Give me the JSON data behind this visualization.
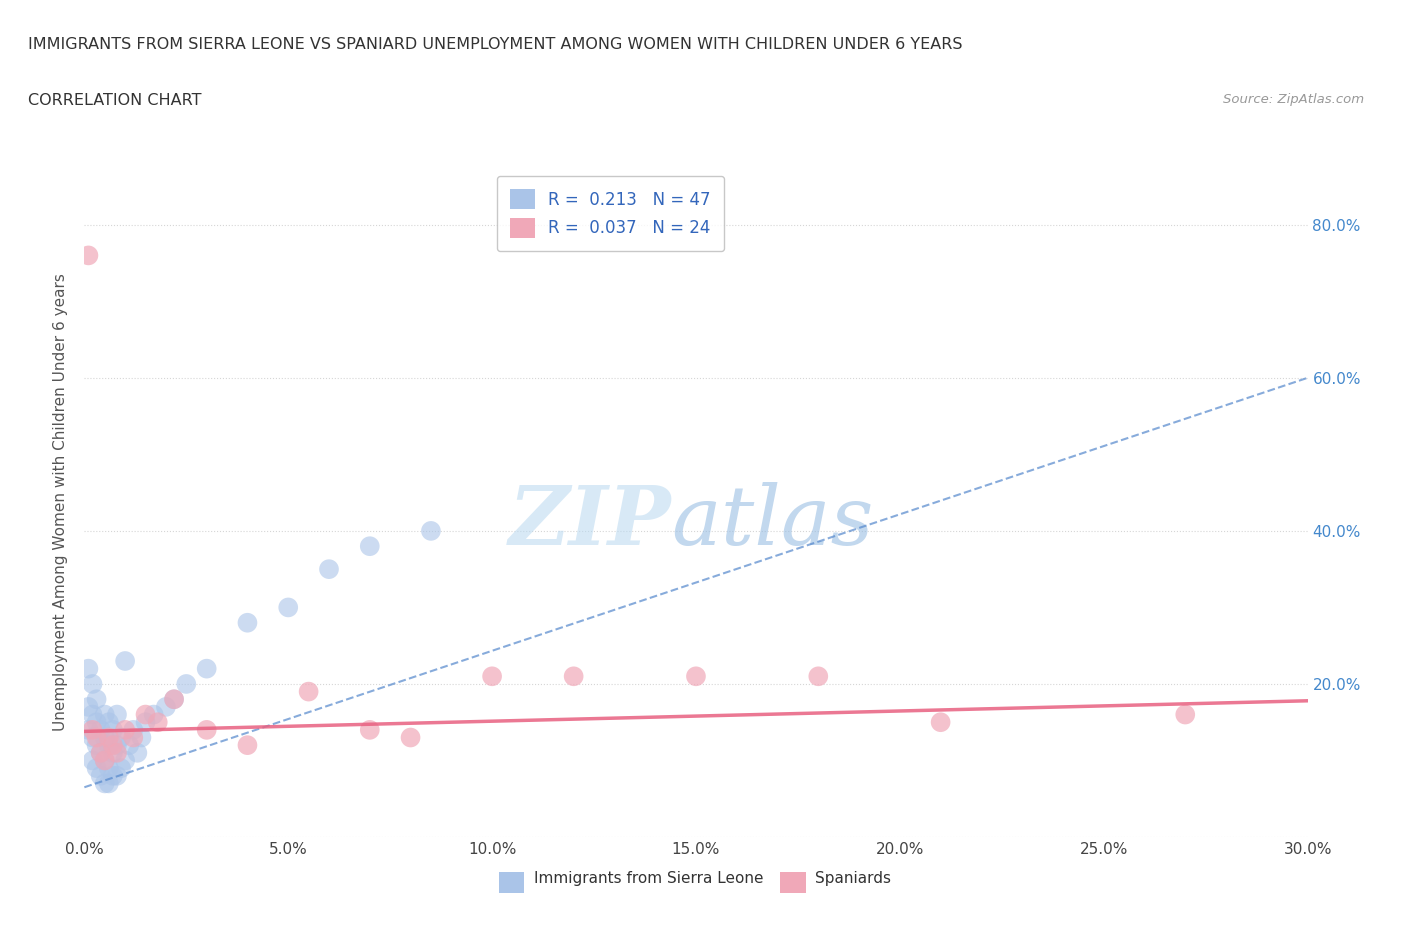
{
  "title": "IMMIGRANTS FROM SIERRA LEONE VS SPANIARD UNEMPLOYMENT AMONG WOMEN WITH CHILDREN UNDER 6 YEARS",
  "subtitle": "CORRELATION CHART",
  "source": "Source: ZipAtlas.com",
  "ylabel_label": "Unemployment Among Women with Children Under 6 years",
  "xlabel_label_1": "Immigrants from Sierra Leone",
  "xlabel_label_2": "Spaniards",
  "xlim": [
    0.0,
    0.3
  ],
  "ylim": [
    0.0,
    0.875
  ],
  "blue_color": "#aac4e8",
  "pink_color": "#f0a8b8",
  "blue_line_color": "#5588cc",
  "pink_line_color": "#e86080",
  "grid_color": "#cccccc",
  "legend_R1": "0.213",
  "legend_N1": "47",
  "legend_R2": "0.037",
  "legend_N2": "24",
  "blue_scatter_x": [
    0.001,
    0.001,
    0.001,
    0.002,
    0.002,
    0.002,
    0.002,
    0.003,
    0.003,
    0.003,
    0.003,
    0.004,
    0.004,
    0.004,
    0.005,
    0.005,
    0.005,
    0.005,
    0.006,
    0.006,
    0.006,
    0.006,
    0.007,
    0.007,
    0.007,
    0.008,
    0.008,
    0.008,
    0.009,
    0.009,
    0.01,
    0.01,
    0.011,
    0.012,
    0.013,
    0.014,
    0.015,
    0.017,
    0.02,
    0.022,
    0.025,
    0.03,
    0.04,
    0.05,
    0.06,
    0.07,
    0.085
  ],
  "blue_scatter_y": [
    0.14,
    0.17,
    0.22,
    0.1,
    0.13,
    0.16,
    0.2,
    0.09,
    0.12,
    0.15,
    0.18,
    0.08,
    0.11,
    0.14,
    0.07,
    0.1,
    0.13,
    0.16,
    0.07,
    0.09,
    0.12,
    0.15,
    0.08,
    0.11,
    0.14,
    0.08,
    0.12,
    0.16,
    0.09,
    0.13,
    0.1,
    0.23,
    0.12,
    0.14,
    0.11,
    0.13,
    0.15,
    0.16,
    0.17,
    0.18,
    0.2,
    0.22,
    0.28,
    0.3,
    0.35,
    0.38,
    0.4
  ],
  "pink_scatter_x": [
    0.001,
    0.002,
    0.003,
    0.004,
    0.005,
    0.006,
    0.007,
    0.008,
    0.01,
    0.012,
    0.015,
    0.018,
    0.022,
    0.03,
    0.04,
    0.055,
    0.07,
    0.08,
    0.1,
    0.12,
    0.15,
    0.18,
    0.21,
    0.27
  ],
  "pink_scatter_y": [
    0.76,
    0.14,
    0.13,
    0.11,
    0.1,
    0.13,
    0.12,
    0.11,
    0.14,
    0.13,
    0.16,
    0.15,
    0.18,
    0.14,
    0.12,
    0.19,
    0.14,
    0.13,
    0.21,
    0.21,
    0.21,
    0.21,
    0.15,
    0.16
  ],
  "blue_line_x": [
    0.0,
    0.3
  ],
  "blue_line_y": [
    0.065,
    0.6
  ],
  "pink_line_x": [
    0.0,
    0.3
  ],
  "pink_line_y": [
    0.138,
    0.178
  ],
  "x_tick_vals": [
    0.0,
    0.05,
    0.1,
    0.15,
    0.2,
    0.25,
    0.3
  ],
  "x_tick_labels": [
    "0.0%",
    "5.0%",
    "10.0%",
    "15.0%",
    "20.0%",
    "25.0%",
    "30.0%"
  ],
  "y_tick_vals": [
    0.0,
    0.2,
    0.4,
    0.6,
    0.8
  ],
  "y_tick_labels": [
    "",
    "20.0%",
    "40.0%",
    "60.0%",
    "80.0%"
  ]
}
